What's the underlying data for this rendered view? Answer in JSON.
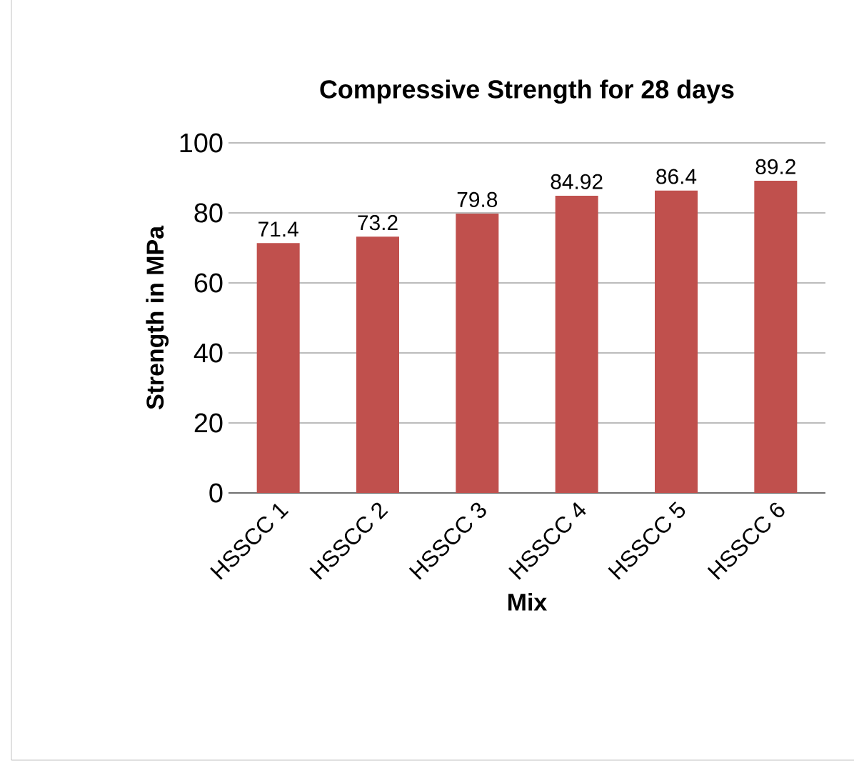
{
  "chart_data": {
    "type": "bar",
    "title": "Compressive Strength for 28 days",
    "xlabel": "Mix",
    "ylabel": "Strength in MPa",
    "categories": [
      "HSSCC 1",
      "HSSCC 2",
      "HSSCC 3",
      "HSSCC 4",
      "HSSCC 5",
      "HSSCC 6"
    ],
    "values": [
      71.4,
      73.2,
      79.8,
      84.92,
      86.4,
      89.2
    ],
    "value_labels": [
      "71.4",
      "73.2",
      "79.8",
      "84.92",
      "86.4",
      "89.2"
    ],
    "color": "#c0504d",
    "ylim": [
      0,
      100
    ],
    "yticks": [
      0,
      20,
      40,
      60,
      80,
      100
    ],
    "grid": "y"
  }
}
